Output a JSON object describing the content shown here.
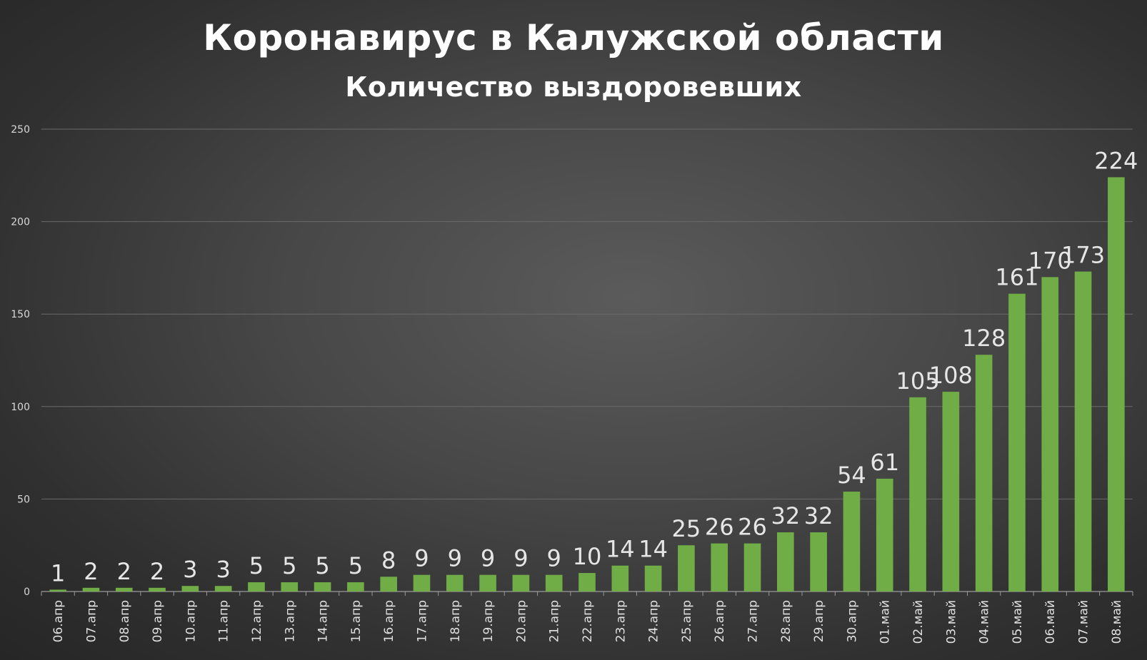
{
  "chart_data": {
    "type": "bar",
    "title": "Коронавирус в Калужской области",
    "subtitle": "Количество выздоровевших",
    "categories": [
      "06.апр",
      "07.апр",
      "08.апр",
      "09.апр",
      "10.апр",
      "11.апр",
      "12.апр",
      "13.апр",
      "14.апр",
      "15.апр",
      "16.апр",
      "17.апр",
      "18.апр",
      "19.апр",
      "20.апр",
      "21.апр",
      "22.апр",
      "23.апр",
      "24.апр",
      "25.апр",
      "26.апр",
      "27.апр",
      "28.апр",
      "29.апр",
      "30.апр",
      "01.май",
      "02.май",
      "03.май",
      "04.май",
      "05.май",
      "06.май",
      "07.май",
      "08.май"
    ],
    "values": [
      1,
      2,
      2,
      2,
      3,
      3,
      5,
      5,
      5,
      5,
      8,
      9,
      9,
      9,
      9,
      9,
      10,
      14,
      14,
      25,
      26,
      26,
      32,
      32,
      54,
      61,
      105,
      108,
      128,
      161,
      170,
      173,
      224
    ],
    "ylim": [
      0,
      250
    ],
    "yticks": [
      0,
      50,
      100,
      150,
      200,
      250
    ],
    "xlabel": "",
    "ylabel": "",
    "grid": true,
    "bar_color": "#70ad47",
    "gridline_color": "#6a6a6a",
    "background_color": "#3c3c3c"
  }
}
